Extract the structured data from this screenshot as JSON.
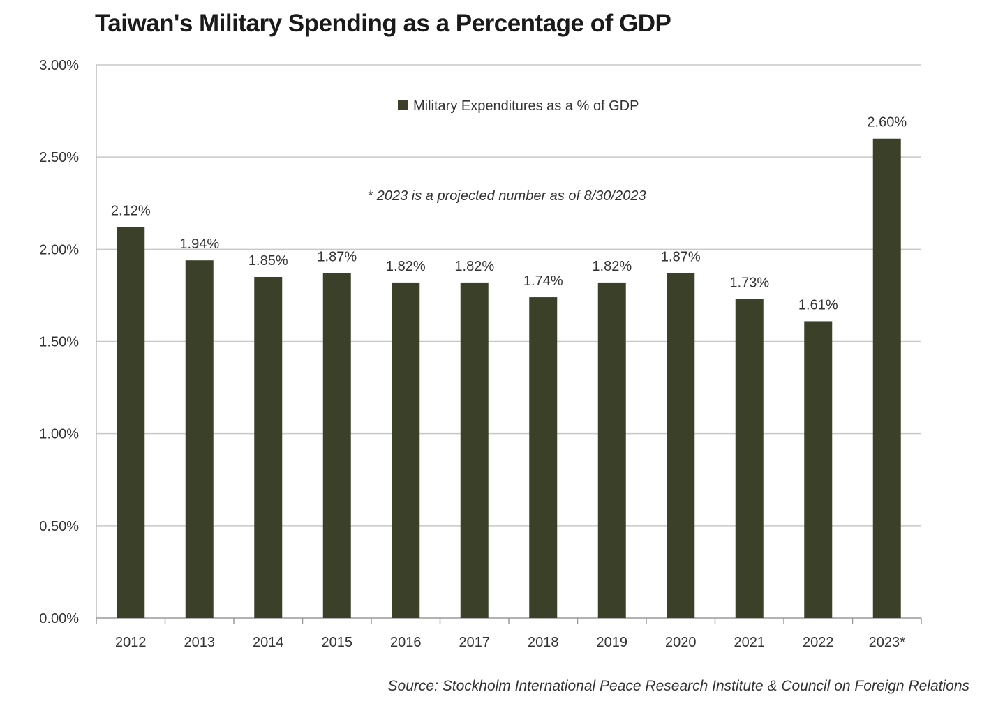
{
  "chart_data": {
    "type": "bar",
    "title": "Taiwan's Military Spending as a Percentage of GDP",
    "categories": [
      "2012",
      "2013",
      "2014",
      "2015",
      "2016",
      "2017",
      "2018",
      "2019",
      "2020",
      "2021",
      "2022",
      "2023*"
    ],
    "series": [
      {
        "name": "Military Expenditures as a % of GDP",
        "values": [
          2.12,
          1.94,
          1.85,
          1.87,
          1.82,
          1.82,
          1.74,
          1.82,
          1.87,
          1.73,
          1.61,
          2.6
        ],
        "data_labels": [
          "2.12%",
          "1.94%",
          "1.85%",
          "1.87%",
          "1.82%",
          "1.82%",
          "1.74%",
          "1.82%",
          "1.87%",
          "1.73%",
          "1.61%",
          "2.60%"
        ],
        "color": "#3b4129"
      }
    ],
    "xlabel": "",
    "ylabel": "",
    "ylim": [
      0,
      3.0
    ],
    "yticks": [
      0,
      0.5,
      1.0,
      1.5,
      2.0,
      2.5,
      3.0
    ],
    "ytick_labels": [
      "0.00%",
      "0.50%",
      "1.00%",
      "1.50%",
      "2.00%",
      "2.50%",
      "3.00%"
    ],
    "grid": true,
    "grid_color": "#c8c8c8",
    "legend_position": "top-center",
    "annotation": "* 2023 is a projected number as of 8/30/2023",
    "source": "Source: Stockholm International Peace Research Institute & Council on Foreign Relations"
  }
}
